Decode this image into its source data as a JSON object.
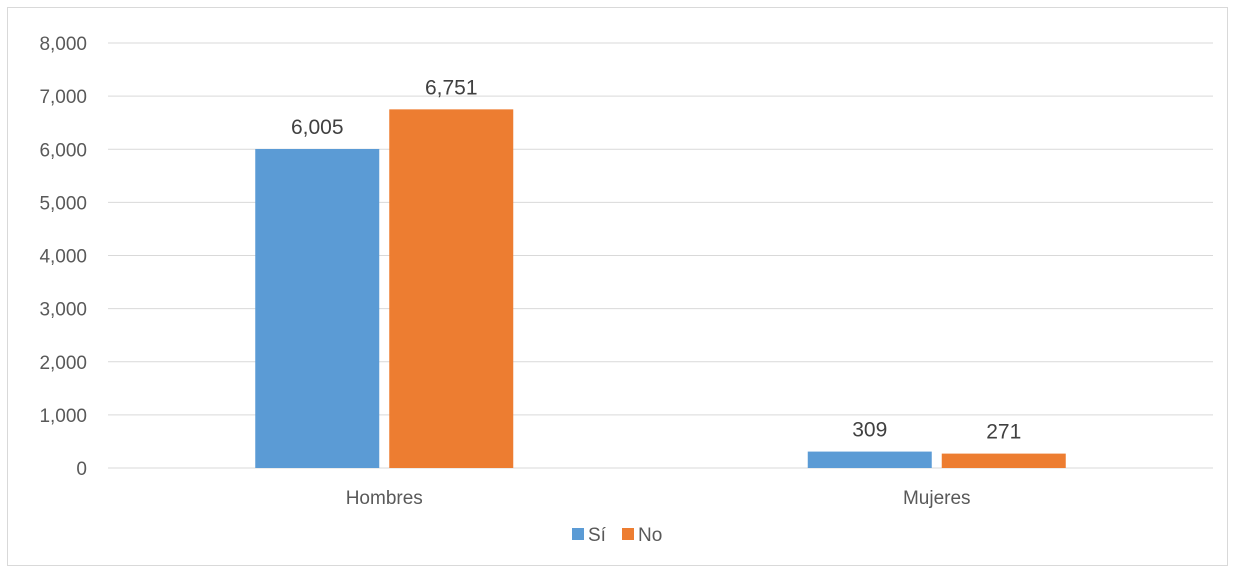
{
  "chart_data": {
    "type": "bar",
    "categories": [
      "Hombres",
      "Mujeres"
    ],
    "series": [
      {
        "name": "Sí",
        "values": [
          6005,
          309
        ],
        "labels": [
          "6,005",
          "309"
        ],
        "color": "#5b9bd5"
      },
      {
        "name": "No",
        "values": [
          6751,
          271
        ],
        "labels": [
          "6,751",
          "271"
        ],
        "color": "#ed7d31"
      }
    ],
    "y_ticks": [
      "0",
      "1,000",
      "2,000",
      "3,000",
      "4,000",
      "5,000",
      "6,000",
      "7,000",
      "8,000"
    ],
    "ylim": [
      0,
      8000
    ],
    "grid": true,
    "legend": "bottom"
  }
}
